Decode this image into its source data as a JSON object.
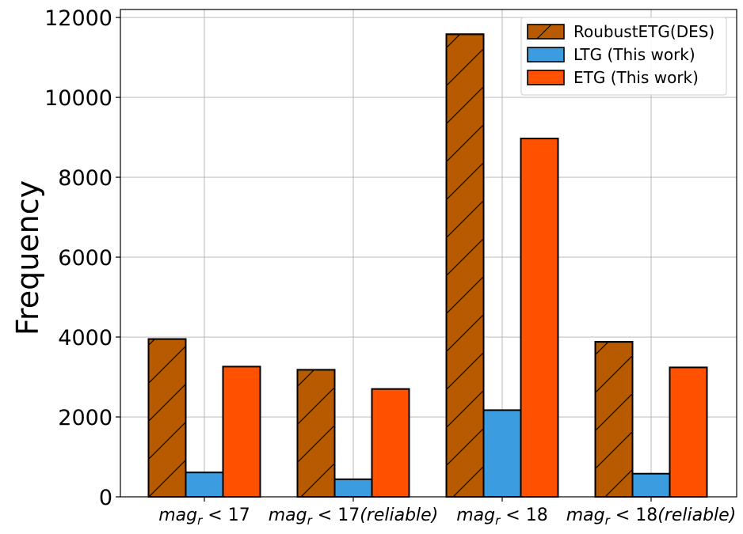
{
  "chart_data": {
    "type": "bar",
    "title": "",
    "xlabel": "",
    "ylabel": "Frequency",
    "ylim": [
      0,
      12200
    ],
    "yticks": [
      0,
      2000,
      4000,
      6000,
      8000,
      10000,
      12000
    ],
    "grid": true,
    "legend_position": "top-right",
    "categories": [
      {
        "base": "mag",
        "sub": "r",
        "rest": " < 17",
        "suffix": ""
      },
      {
        "base": "mag",
        "sub": "r",
        "rest": " < 17",
        "suffix": "(reliable)"
      },
      {
        "base": "mag",
        "sub": "r",
        "rest": " < 18",
        "suffix": ""
      },
      {
        "base": "mag",
        "sub": "r",
        "rest": " < 18",
        "suffix": "(reliable)"
      }
    ],
    "series": [
      {
        "name": "RoubustETG(DES)",
        "color": "#b85a00",
        "hatch": true,
        "values": [
          3950,
          3180,
          11580,
          3880
        ]
      },
      {
        "name": "LTG (This work)",
        "color": "#3b9de0",
        "hatch": false,
        "values": [
          610,
          440,
          2170,
          580
        ]
      },
      {
        "name": "ETG (This work)",
        "color": "#ff5100",
        "hatch": false,
        "values": [
          3260,
          2700,
          8970,
          3240
        ]
      }
    ]
  }
}
